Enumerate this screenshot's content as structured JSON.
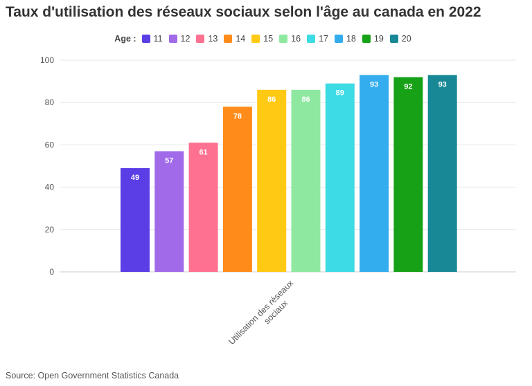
{
  "chart_data": {
    "type": "bar",
    "title": "Taux d'utilisation des réseaux sociaux selon l'âge au canada en 2022",
    "legend_title": "Age :",
    "legend_position": "top-center",
    "categories": [
      "Utilisation des réseaux sociaux"
    ],
    "ylim": [
      0,
      100
    ],
    "yticks": [
      0,
      20,
      40,
      60,
      80,
      100
    ],
    "grid": true,
    "series": [
      {
        "name": "11",
        "color": "#5b3ee6",
        "values": [
          49
        ]
      },
      {
        "name": "12",
        "color": "#a06ae8",
        "values": [
          57
        ]
      },
      {
        "name": "13",
        "color": "#ff7190",
        "values": [
          61
        ]
      },
      {
        "name": "14",
        "color": "#ff8c1a",
        "values": [
          78
        ]
      },
      {
        "name": "15",
        "color": "#ffc914",
        "values": [
          86
        ]
      },
      {
        "name": "16",
        "color": "#8fe8a0",
        "values": [
          86
        ]
      },
      {
        "name": "17",
        "color": "#3ddbe3",
        "values": [
          89
        ]
      },
      {
        "name": "18",
        "color": "#33adee",
        "values": [
          93
        ]
      },
      {
        "name": "19",
        "color": "#17a117",
        "values": [
          92
        ]
      },
      {
        "name": "20",
        "color": "#188896",
        "values": [
          93
        ]
      }
    ]
  },
  "source": "Source: Open Government Statistics Canada"
}
